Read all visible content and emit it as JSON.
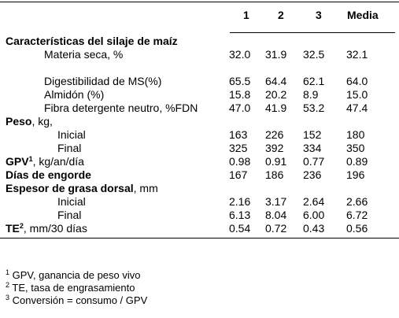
{
  "header": {
    "col1": "1",
    "col2": "2",
    "col3": "3",
    "media": "Media"
  },
  "rows": [
    {
      "id": "caracteristicas",
      "label": "Características del silaje de maíz",
      "bold": true,
      "values": [
        "",
        "",
        "",
        ""
      ]
    },
    {
      "id": "materia-seca",
      "label": "Materia seca, %",
      "values": [
        "32.0",
        "31.9",
        "32.5",
        "32.1"
      ]
    },
    {
      "id": "digestibilidad",
      "label": "Digestibilidad de MS(%)",
      "values": [
        "65.5",
        "64.4",
        "62.1",
        "64.0"
      ]
    },
    {
      "id": "almidon",
      "label": "Almidón (%)",
      "values": [
        "15.8",
        "20.2",
        "8.9",
        "15.0"
      ]
    },
    {
      "id": "fibra",
      "label": "Fibra detergente neutro, %FDN",
      "values": [
        "47.0",
        "41.9",
        "53.2",
        "47.4"
      ]
    },
    {
      "id": "peso",
      "label_bold": "Peso",
      "label_rest": ", kg,",
      "values": [
        "",
        "",
        "",
        ""
      ]
    },
    {
      "id": "peso-inicial",
      "label": "Inicial",
      "values": [
        "163",
        "226",
        "152",
        "180"
      ]
    },
    {
      "id": "peso-final",
      "label": "Final",
      "values": [
        "325",
        "392",
        "334",
        "350"
      ]
    },
    {
      "id": "gpv",
      "label_bold": "GPV",
      "sup": "1",
      "label_rest": ", kg/an/día",
      "values": [
        "0.98",
        "0.91",
        "0.77",
        "0.89"
      ]
    },
    {
      "id": "dias",
      "label": "Días de engorde",
      "bold": true,
      "values": [
        "167",
        "186",
        "236",
        "196"
      ]
    },
    {
      "id": "espesor",
      "label_bold": "Espesor de grasa dorsal",
      "label_rest": ", mm",
      "values": [
        "",
        "",
        "",
        ""
      ]
    },
    {
      "id": "espesor-inicial",
      "label": "Inicial",
      "values": [
        "2.16",
        "3.17",
        "2.64",
        "2.66"
      ]
    },
    {
      "id": "espesor-final",
      "label": "Final",
      "values": [
        "6.13",
        "8.04",
        "6.00",
        "6.72"
      ]
    },
    {
      "id": "te",
      "label_bold": "TE",
      "sup": "2",
      "label_rest": ", mm/30 días",
      "values": [
        "0.54",
        "0.72",
        "0.43",
        "0.56"
      ]
    }
  ],
  "footnotes": [
    {
      "num": "1",
      "text": " GPV, ganancia de peso vivo"
    },
    {
      "num": "2",
      "text": " TE, tasa de engrasamiento"
    },
    {
      "num": "3",
      "text": " Conversión = consumo / GPV"
    }
  ]
}
